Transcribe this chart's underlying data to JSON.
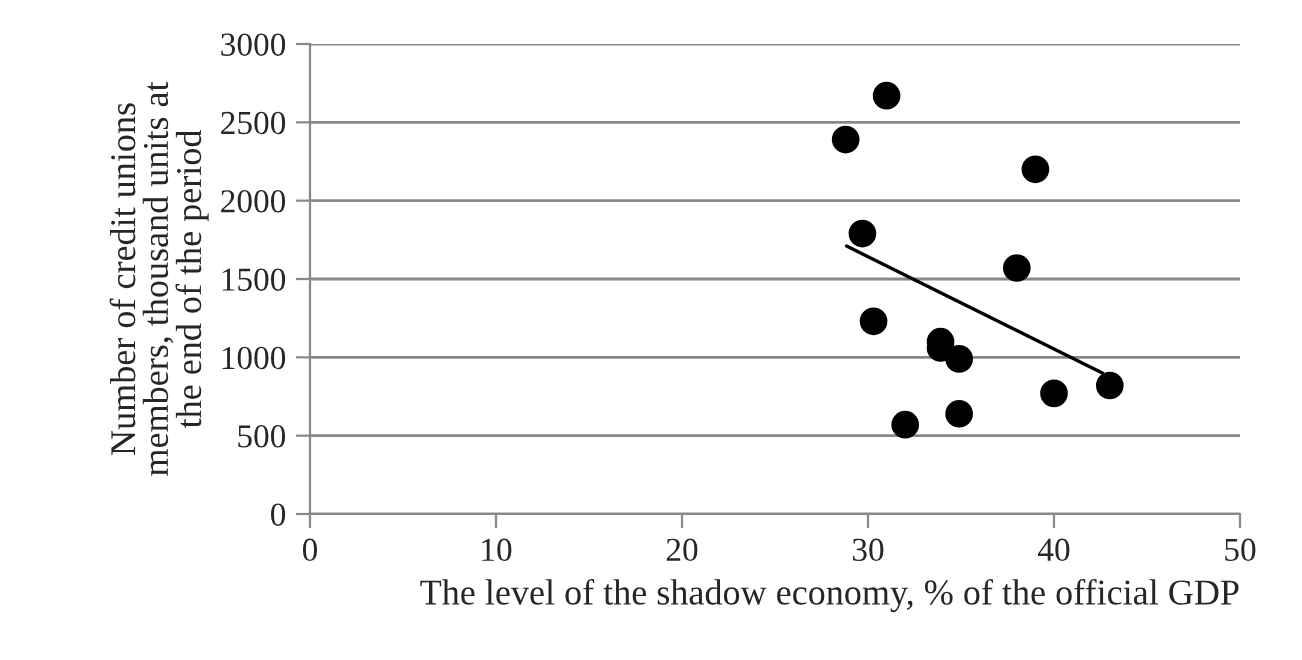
{
  "chart_data": {
    "type": "scatter",
    "xlabel": "The level of the shadow economy, % of the official GDP",
    "ylabel": "Number of credit unions\nmembers, thousand units at\nthe end of the period",
    "series": [
      {
        "color": "#000000",
        "marker": "circle",
        "x": [
          31.0,
          28.8,
          29.7,
          30.3,
          33.9,
          33.9,
          32.0,
          39.0,
          38.0,
          34.9,
          34.9,
          40.0,
          43.0
        ],
        "values": [
          2670,
          2390,
          1790,
          1230,
          1100,
          1060,
          570,
          2200,
          1570,
          990,
          640,
          770,
          820
        ]
      },
      {
        "type": "line",
        "color": "#000000",
        "x": [
          28.85,
          42.6
        ],
        "values": [
          1710,
          900
        ]
      }
    ],
    "xlim": [
      0,
      50
    ],
    "xticks": [
      0,
      10,
      20,
      30,
      40,
      50
    ],
    "ylim": [
      0,
      3000
    ],
    "yticks": [
      0,
      500,
      1000,
      1500,
      2000,
      2500,
      3000
    ],
    "grid": "y"
  }
}
